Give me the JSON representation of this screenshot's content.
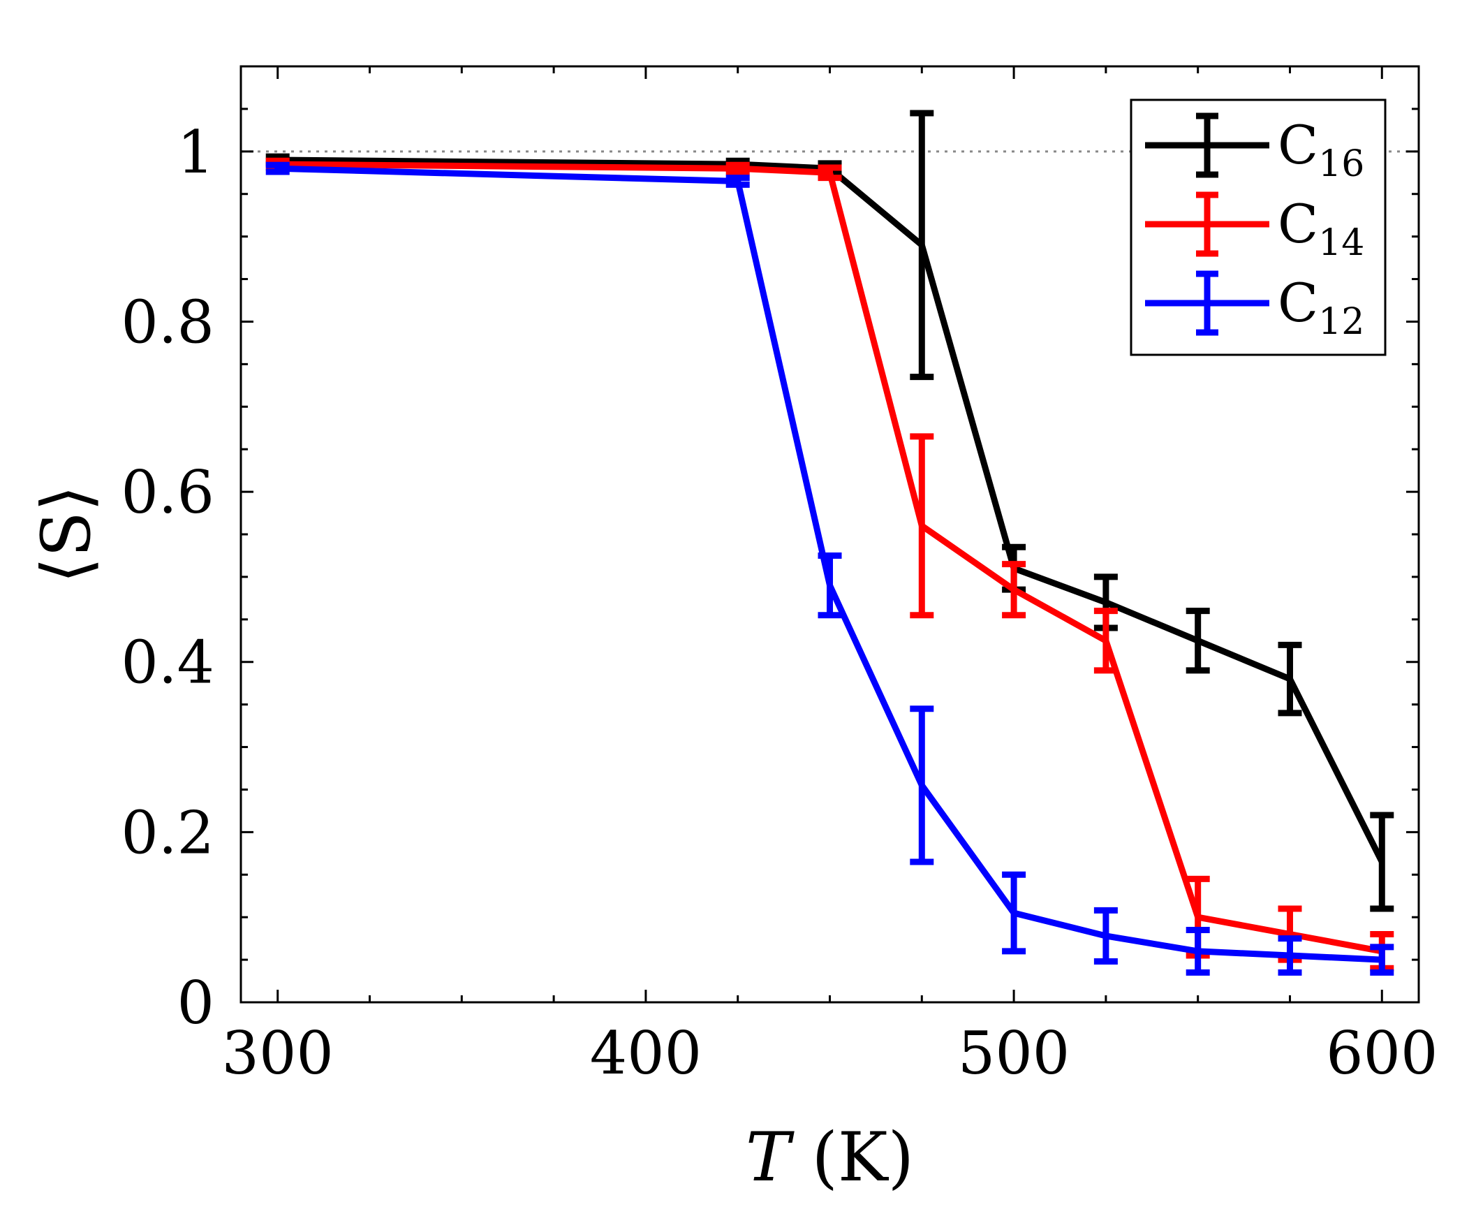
{
  "chart_data": {
    "type": "line",
    "title": "",
    "xlabel": {
      "symbol": "T",
      "unit": "(K)"
    },
    "ylabel": "⟨S⟩",
    "xlim": [
      290,
      610
    ],
    "ylim": [
      0,
      1.1
    ],
    "xticks": [
      300,
      400,
      500,
      600
    ],
    "xtick_labels": [
      "300",
      "400",
      "500",
      "600"
    ],
    "yticks": [
      0,
      0.2,
      0.4,
      0.6,
      0.8,
      1
    ],
    "ytick_labels": [
      "0",
      "0.2",
      "0.4",
      "0.6",
      "0.8",
      "1"
    ],
    "reference_line": {
      "y": 1,
      "style": "dotted",
      "color": "#888888"
    },
    "legend_position": "top-right",
    "series": [
      {
        "name": "C16",
        "base": "C",
        "sub": "16",
        "color": "#000000",
        "x": [
          300,
          425,
          450,
          475,
          500,
          525,
          550,
          575,
          600
        ],
        "y": [
          0.99,
          0.985,
          0.98,
          0.89,
          0.51,
          0.47,
          0.425,
          0.38,
          0.165
        ],
        "err": [
          0.004,
          0.004,
          0.006,
          0.155,
          0.025,
          0.03,
          0.035,
          0.04,
          0.055
        ]
      },
      {
        "name": "C14",
        "base": "C",
        "sub": "14",
        "color": "#ff0000",
        "x": [
          300,
          425,
          450,
          475,
          500,
          525,
          550,
          575,
          600
        ],
        "y": [
          0.985,
          0.98,
          0.975,
          0.56,
          0.485,
          0.425,
          0.1,
          0.08,
          0.06
        ],
        "err": [
          0.004,
          0.004,
          0.006,
          0.105,
          0.03,
          0.035,
          0.045,
          0.03,
          0.02
        ]
      },
      {
        "name": "C12",
        "base": "C",
        "sub": "12",
        "color": "#0000ff",
        "x": [
          300,
          425,
          450,
          475,
          500,
          525,
          550,
          575,
          600
        ],
        "y": [
          0.98,
          0.965,
          0.49,
          0.255,
          0.105,
          0.078,
          0.06,
          0.055,
          0.05
        ],
        "err": [
          0.004,
          0.004,
          0.035,
          0.09,
          0.045,
          0.03,
          0.025,
          0.02,
          0.015
        ]
      }
    ]
  }
}
